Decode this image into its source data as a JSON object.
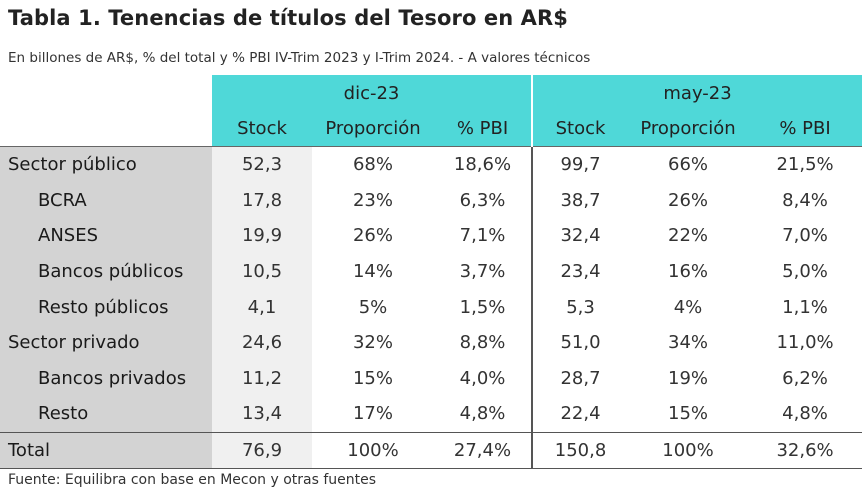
{
  "title": "Tabla 1. Tenencias de títulos del Tesoro en AR$",
  "subtitle": "En billones de AR$, % del total y % PBI IV-Trim 2023 y I-Trim 2024. - A valores técnicos",
  "groups": [
    "dic-23",
    "may-23"
  ],
  "columns": [
    "Stock",
    "Proporción",
    "% PBI",
    "Stock",
    "Proporción",
    "% PBI"
  ],
  "rows": [
    {
      "label": "Sector público",
      "values": [
        "52,3",
        "68%",
        "18,6%",
        "99,7",
        "66%",
        "21,5%"
      ]
    },
    {
      "label": "BCRA",
      "values": [
        "17,8",
        "23%",
        "6,3%",
        "38,7",
        "26%",
        "8,4%"
      ]
    },
    {
      "label": "ANSES",
      "values": [
        "19,9",
        "26%",
        "7,1%",
        "32,4",
        "22%",
        "7,0%"
      ]
    },
    {
      "label": "Bancos públicos",
      "values": [
        "10,5",
        "14%",
        "3,7%",
        "23,4",
        "16%",
        "5,0%"
      ]
    },
    {
      "label": "Resto públicos",
      "values": [
        "4,1",
        "5%",
        "1,5%",
        "5,3",
        "4%",
        "1,1%"
      ]
    },
    {
      "label": "Sector privado",
      "values": [
        "24,6",
        "32%",
        "8,8%",
        "51,0",
        "34%",
        "11,0%"
      ]
    },
    {
      "label": "Bancos privados",
      "values": [
        "11,2",
        "15%",
        "4,0%",
        "28,7",
        "19%",
        "6,2%"
      ]
    },
    {
      "label": "Resto",
      "values": [
        "13,4",
        "17%",
        "4,8%",
        "22,4",
        "15%",
        "4,8%"
      ]
    },
    {
      "label": "Total",
      "values": [
        "76,9",
        "100%",
        "27,4%",
        "150,8",
        "100%",
        "32,6%"
      ]
    }
  ],
  "footer": "Fuente: Equilibra con base en Mecon y otras fuentes",
  "colors": {
    "header_fill": "#4fd8d8",
    "label_fill": "#d3d3d3",
    "stock_fill": "#f0f0f0"
  }
}
